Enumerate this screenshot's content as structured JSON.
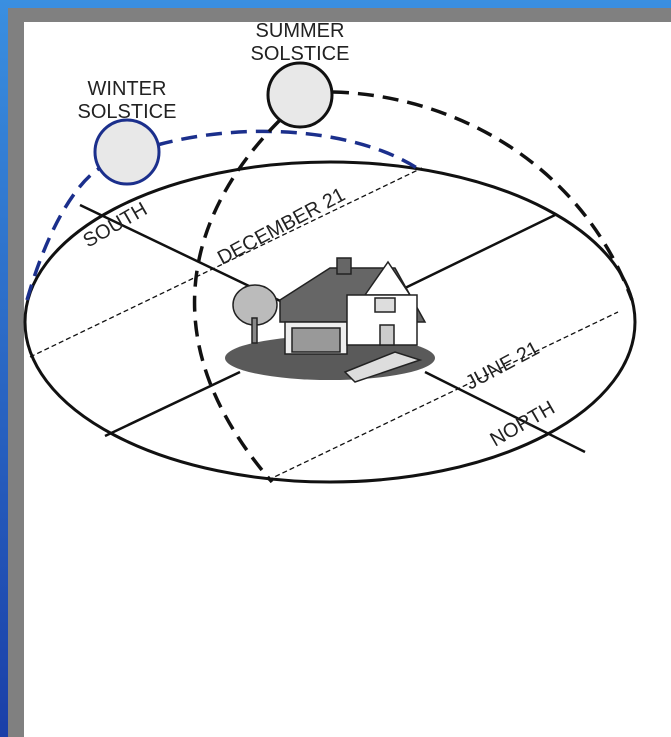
{
  "labels": {
    "summer_solstice": [
      "SUMMER",
      "SOLSTICE"
    ],
    "winter_solstice": [
      "WINTER",
      "SOLSTICE"
    ],
    "south": "SOUTH",
    "december": "DECEMBER 21",
    "june": "JUNE 21",
    "north": "NORTH"
  }
}
